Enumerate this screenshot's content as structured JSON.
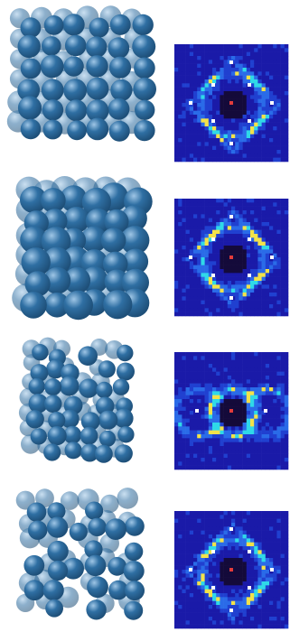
{
  "figure": {
    "rows": [
      {
        "id": "row-1",
        "cluster": "cluster-1",
        "pattern": "diffraction-pattern-1"
      },
      {
        "id": "row-2",
        "cluster": "cluster-2",
        "pattern": "diffraction-pattern-2"
      },
      {
        "id": "row-3",
        "cluster": "cluster-3",
        "pattern": "diffraction-pattern-3"
      },
      {
        "id": "row-4",
        "cluster": "cluster-4",
        "pattern": "diffraction-pattern-4"
      }
    ],
    "colors": {
      "sphere_dark": "#1e4f78",
      "sphere_mid": "#2f6fa3",
      "sphere_light": "#9fc6e6",
      "pattern_bg": "#1a1aa8",
      "pattern_core": "#140a3a",
      "pattern_hot": "#ffffff",
      "pattern_cyan": "#2fd9e8",
      "pattern_yellow": "#f2e24a",
      "pattern_red": "#e23b3b"
    }
  }
}
